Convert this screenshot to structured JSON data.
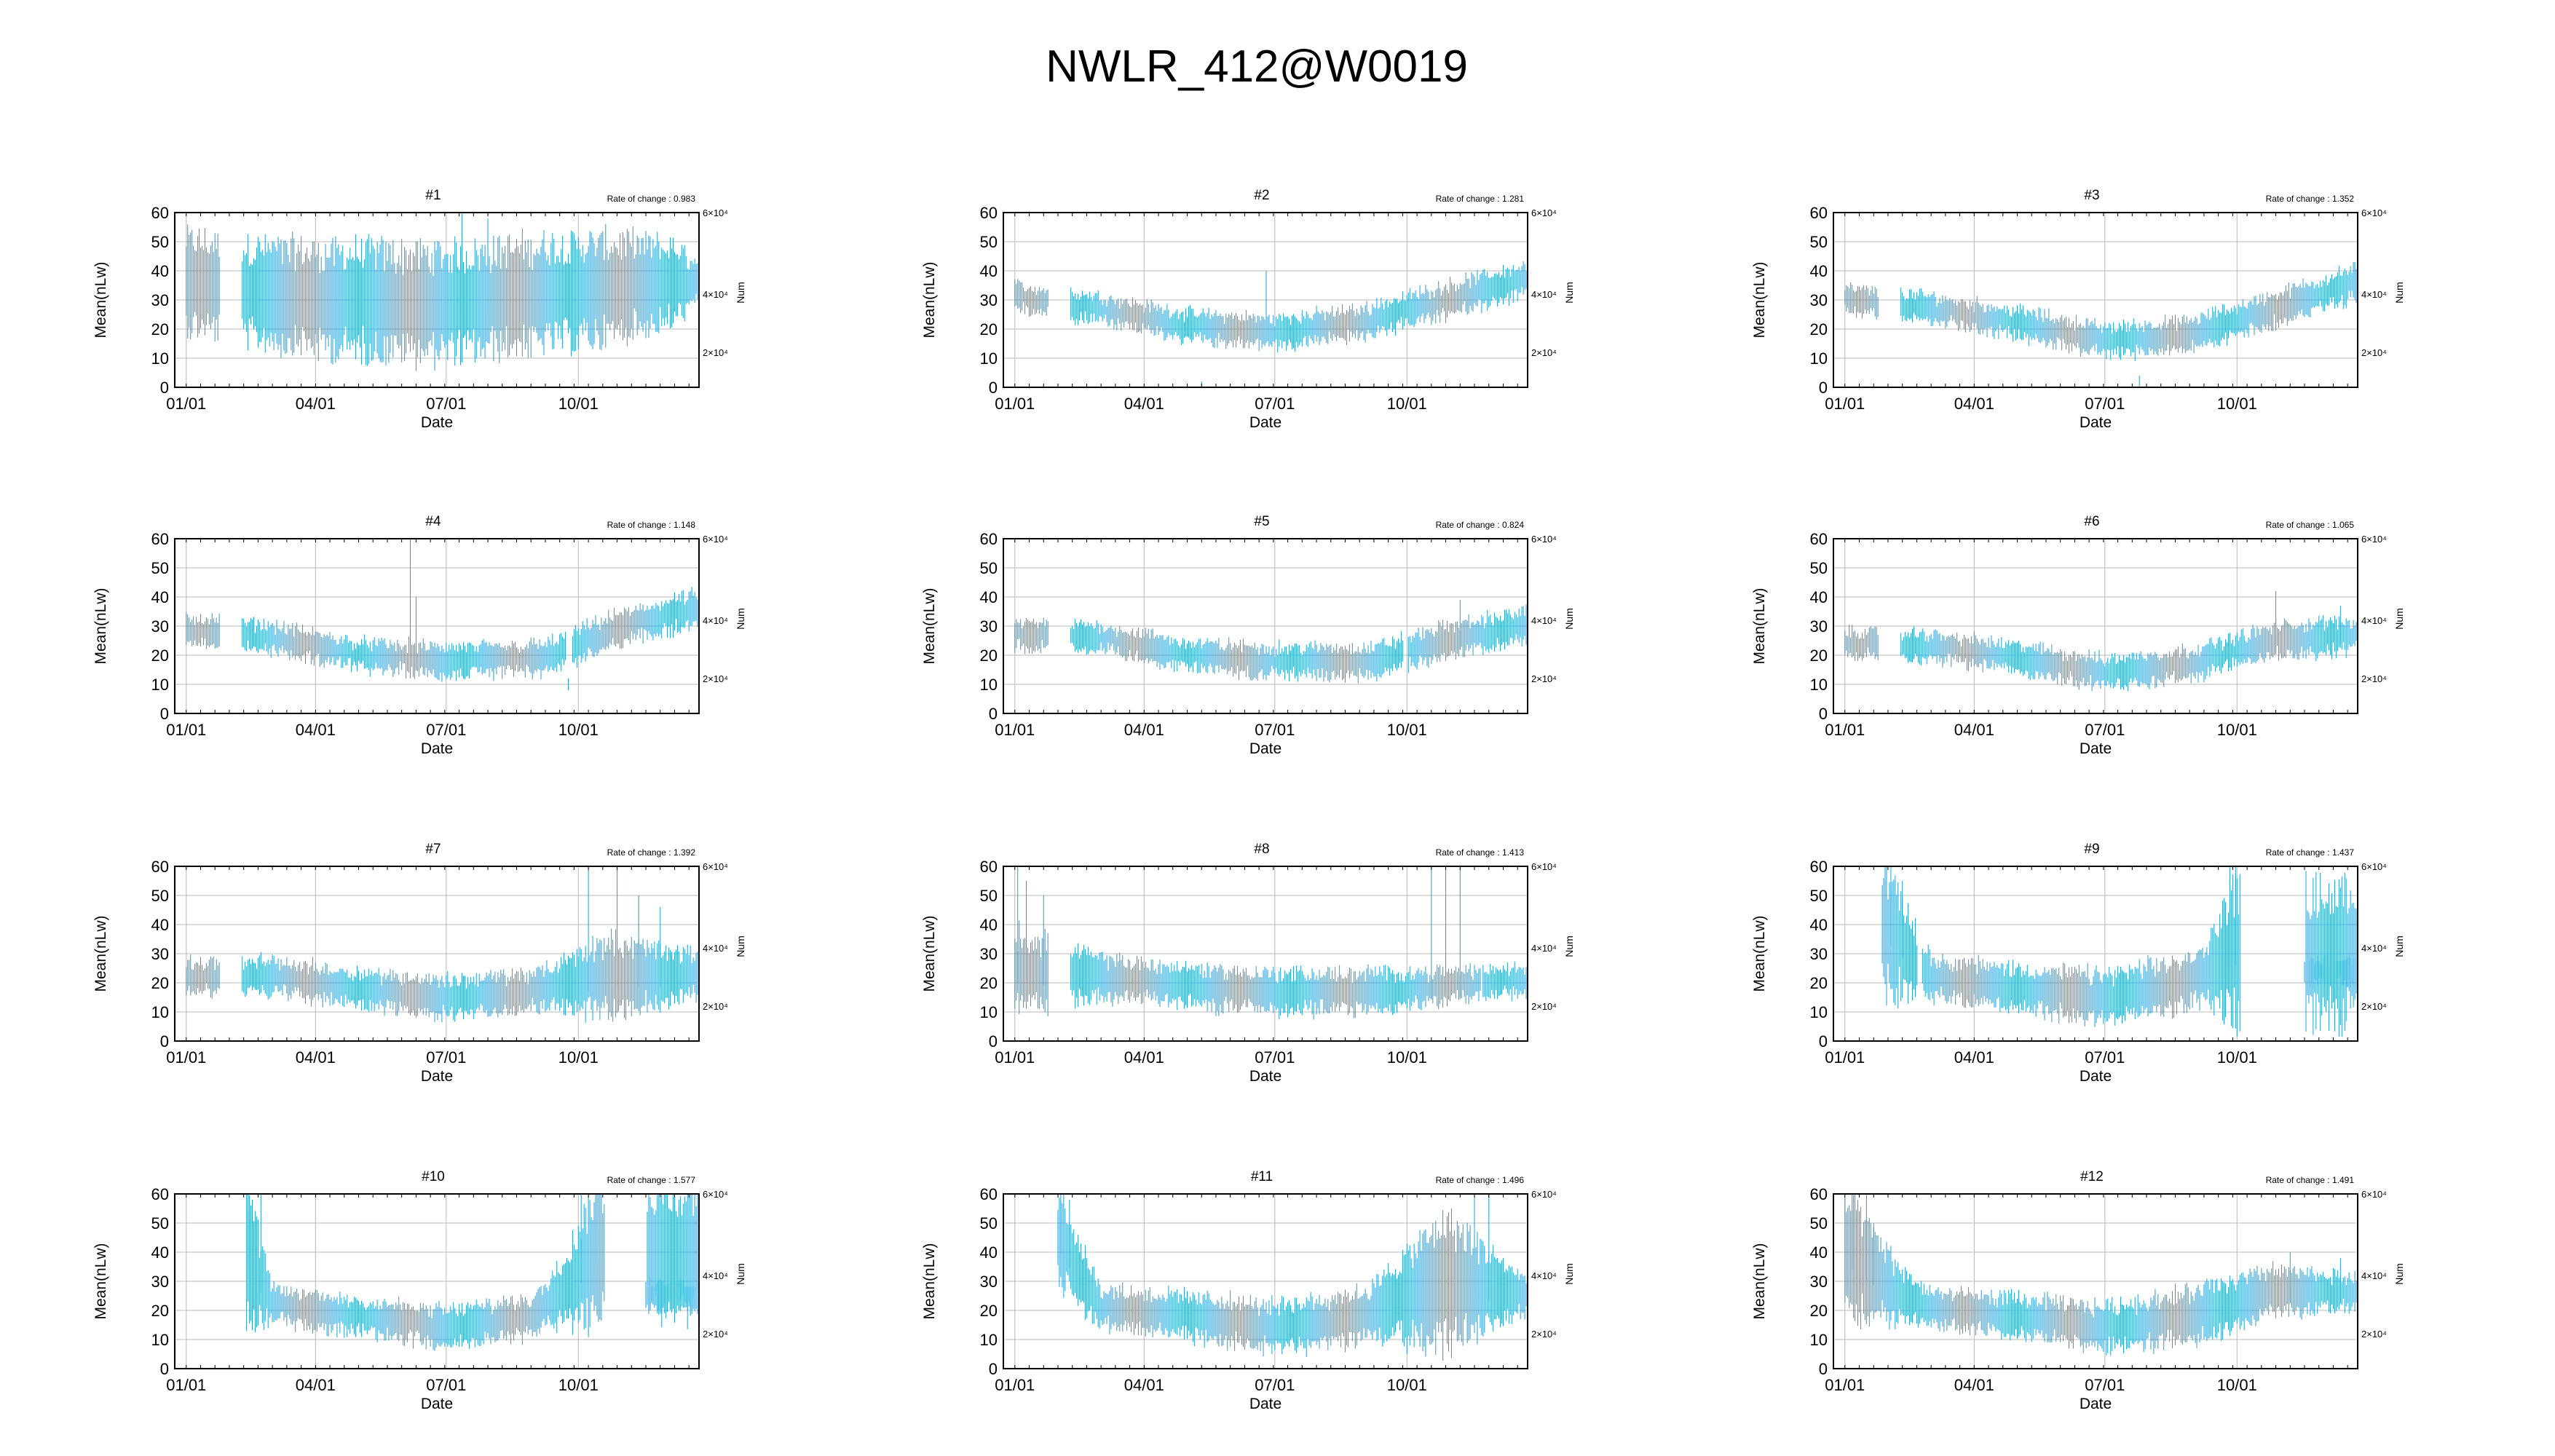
{
  "figure": {
    "title": "NWLR_412@W0019"
  },
  "chart_data": {
    "type": "errorbar",
    "title": "NWLR_412@W0019",
    "layout": "4 rows x 3 columns",
    "series_color": "#1f9fd6",
    "grid": true,
    "ylabel": "Mean(nLw)",
    "y2label": "Num",
    "xlabel": "Date",
    "ylim": [
      0,
      60
    ],
    "yticks": [
      "0",
      "10",
      "20",
      "30",
      "40",
      "50",
      "60"
    ],
    "y2ticks": [
      "2×10⁴",
      "4×10⁴",
      "6×10⁴"
    ],
    "x_range_days": [
      -8,
      357
    ],
    "xticks": [
      {
        "label": "01/01",
        "day": 0
      },
      {
        "label": "04/01",
        "day": 90
      },
      {
        "label": "07/01",
        "day": 181
      },
      {
        "label": "10/01",
        "day": 273
      }
    ],
    "rate_label": "Rate of change :",
    "panels": [
      {
        "label": "#1",
        "rate_of_change": "0.983",
        "trend": [
          [
            0,
            36
          ],
          [
            40,
            33
          ],
          [
            100,
            30
          ],
          [
            181,
            29
          ],
          [
            250,
            32
          ],
          [
            300,
            34
          ],
          [
            357,
            36
          ]
        ],
        "spread": [
          [
            0,
            14
          ],
          [
            120,
            16
          ],
          [
            250,
            16
          ],
          [
            300,
            15
          ],
          [
            340,
            12
          ],
          [
            357,
            6
          ]
        ],
        "gaps": [
          [
            24,
            38
          ]
        ],
        "spikes": [
          [
            192,
            60
          ],
          [
            210,
            58
          ]
        ]
      },
      {
        "label": "#2",
        "rate_of_change": "1.281",
        "trend": [
          [
            0,
            31
          ],
          [
            60,
            27
          ],
          [
            120,
            21
          ],
          [
            181,
            19
          ],
          [
            240,
            22
          ],
          [
            300,
            30
          ],
          [
            357,
            37
          ]
        ],
        "spread": [
          [
            0,
            4
          ],
          [
            357,
            5
          ]
        ],
        "gaps": [
          [
            24,
            38
          ]
        ],
        "spikes": [
          [
            130,
            2
          ],
          [
            175,
            40
          ]
        ]
      },
      {
        "label": "#3",
        "rate_of_change": "1.352",
        "trend": [
          [
            0,
            30
          ],
          [
            60,
            27
          ],
          [
            120,
            22
          ],
          [
            181,
            16
          ],
          [
            240,
            18
          ],
          [
            300,
            27
          ],
          [
            357,
            36
          ]
        ],
        "spread": [
          [
            0,
            4
          ],
          [
            357,
            5
          ]
        ],
        "gaps": [
          [
            24,
            38
          ]
        ],
        "spikes": [
          [
            205,
            4
          ],
          [
            355,
            43
          ]
        ]
      },
      {
        "label": "#4",
        "rate_of_change": "1.148",
        "trend": [
          [
            0,
            29
          ],
          [
            60,
            26
          ],
          [
            120,
            20
          ],
          [
            181,
            18
          ],
          [
            250,
            19
          ],
          [
            300,
            29
          ],
          [
            357,
            36
          ]
        ],
        "spread": [
          [
            0,
            4
          ],
          [
            357,
            5
          ]
        ],
        "gaps": [
          [
            24,
            38
          ],
          [
            265,
            268
          ]
        ],
        "spikes": [
          [
            156,
            60
          ],
          [
            160,
            40
          ],
          [
            266,
            12
          ]
        ]
      },
      {
        "label": "#5",
        "rate_of_change": "0.824",
        "trend": [
          [
            0,
            27
          ],
          [
            60,
            26
          ],
          [
            120,
            20
          ],
          [
            181,
            18
          ],
          [
            250,
            18
          ],
          [
            300,
            25
          ],
          [
            357,
            30
          ]
        ],
        "spread": [
          [
            0,
            4
          ],
          [
            357,
            5
          ]
        ],
        "gaps": [
          [
            24,
            38
          ],
          [
            271,
            273
          ]
        ],
        "spikes": [
          [
            310,
            39
          ]
        ]
      },
      {
        "label": "#6",
        "rate_of_change": "1.065",
        "trend": [
          [
            0,
            24
          ],
          [
            60,
            23
          ],
          [
            120,
            19
          ],
          [
            181,
            14
          ],
          [
            240,
            17
          ],
          [
            300,
            25
          ],
          [
            357,
            27
          ]
        ],
        "spread": [
          [
            0,
            4
          ],
          [
            357,
            5
          ]
        ],
        "gaps": [
          [
            24,
            38
          ]
        ],
        "spikes": [
          [
            300,
            42
          ],
          [
            345,
            37
          ]
        ]
      },
      {
        "label": "#7",
        "rate_of_change": "1.392",
        "trend": [
          [
            0,
            22
          ],
          [
            60,
            22
          ],
          [
            120,
            18
          ],
          [
            181,
            15
          ],
          [
            240,
            17
          ],
          [
            290,
            22
          ],
          [
            357,
            23
          ]
        ],
        "spread": [
          [
            0,
            5
          ],
          [
            250,
            6
          ],
          [
            290,
            12
          ],
          [
            357,
            6
          ]
        ],
        "gaps": [
          [
            24,
            38
          ]
        ],
        "spikes": [
          [
            280,
            60
          ],
          [
            300,
            60
          ],
          [
            315,
            50
          ],
          [
            330,
            46
          ]
        ]
      },
      {
        "label": "#8",
        "rate_of_change": "1.413",
        "trend": [
          [
            0,
            24
          ],
          [
            60,
            22
          ],
          [
            120,
            19
          ],
          [
            181,
            17
          ],
          [
            240,
            17
          ],
          [
            280,
            18
          ],
          [
            357,
            21
          ]
        ],
        "spread": [
          [
            0,
            12
          ],
          [
            30,
            10
          ],
          [
            60,
            6
          ],
          [
            250,
            6
          ],
          [
            357,
            4
          ]
        ],
        "gaps": [
          [
            24,
            38
          ],
          [
            325,
            325
          ]
        ],
        "spikes": [
          [
            2,
            60
          ],
          [
            8,
            55
          ],
          [
            20,
            50
          ],
          [
            290,
            60
          ],
          [
            300,
            60
          ],
          [
            310,
            60
          ]
        ]
      },
      {
        "label": "#9",
        "rate_of_change": "1.437",
        "trend": [
          [
            26,
            40
          ],
          [
            60,
            22
          ],
          [
            120,
            18
          ],
          [
            181,
            15
          ],
          [
            240,
            20
          ],
          [
            270,
            30
          ]
        ],
        "spread": [
          [
            26,
            20
          ],
          [
            60,
            6
          ],
          [
            250,
            8
          ],
          [
            270,
            20
          ]
        ],
        "gaps": [
          [
            -8,
            25
          ],
          [
            51,
            53
          ],
          [
            276,
            320
          ]
        ],
        "spikes": [
          [
            28,
            60
          ],
          [
            32,
            60
          ],
          [
            40,
            55
          ],
          [
            268,
            60
          ],
          [
            272,
            60
          ]
        ],
        "extra": [
          [
            320,
            357,
            24,
            4
          ]
        ]
      },
      {
        "label": "#10",
        "rate_of_change": "1.577",
        "trend": [
          [
            42,
            40
          ],
          [
            60,
            22
          ],
          [
            120,
            18
          ],
          [
            181,
            14
          ],
          [
            240,
            18
          ],
          [
            270,
            30
          ],
          [
            285,
            40
          ]
        ],
        "spread": [
          [
            42,
            20
          ],
          [
            60,
            5
          ],
          [
            250,
            6
          ],
          [
            285,
            20
          ]
        ],
        "gaps": [
          [
            -8,
            41
          ],
          [
            292,
            320
          ]
        ],
        "spikes": [
          [
            43,
            60
          ],
          [
            52,
            60
          ],
          [
            275,
            60
          ],
          [
            285,
            60
          ]
        ],
        "extra": [
          [
            320,
            357,
            25,
            4
          ]
        ]
      },
      {
        "label": "#11",
        "rate_of_change": "1.496",
        "trend": [
          [
            30,
            45
          ],
          [
            60,
            21
          ],
          [
            120,
            18
          ],
          [
            181,
            14
          ],
          [
            240,
            18
          ],
          [
            300,
            30
          ],
          [
            357,
            25
          ]
        ],
        "spread": [
          [
            30,
            15
          ],
          [
            60,
            6
          ],
          [
            250,
            8
          ],
          [
            300,
            20
          ],
          [
            357,
            5
          ]
        ],
        "gaps": [
          [
            -8,
            29
          ]
        ],
        "spikes": [
          [
            32,
            60
          ],
          [
            38,
            58
          ],
          [
            320,
            60
          ],
          [
            330,
            60
          ]
        ]
      },
      {
        "label": "#12",
        "rate_of_change": "1.491",
        "trend": [
          [
            0,
            40
          ],
          [
            40,
            25
          ],
          [
            60,
            21
          ],
          [
            120,
            18
          ],
          [
            181,
            14
          ],
          [
            240,
            18
          ],
          [
            300,
            27
          ],
          [
            357,
            26
          ]
        ],
        "spread": [
          [
            0,
            18
          ],
          [
            40,
            8
          ],
          [
            60,
            5
          ],
          [
            250,
            8
          ],
          [
            357,
            5
          ]
        ],
        "gaps": [],
        "spikes": [
          [
            5,
            60
          ],
          [
            15,
            60
          ],
          [
            20,
            50
          ],
          [
            310,
            40
          ],
          [
            345,
            38
          ]
        ]
      }
    ]
  }
}
